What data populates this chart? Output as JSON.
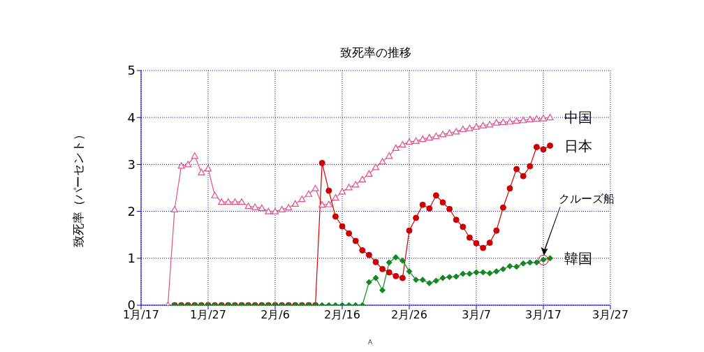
{
  "chart_data": {
    "type": "line",
    "title": "致死率の推移",
    "ylabel": "致死率（パーセント）",
    "x": [
      "--01-21",
      "--01-22",
      "--01-23",
      "--01-24",
      "--01-25",
      "--01-26",
      "--01-27",
      "--01-28",
      "--01-29",
      "--01-30",
      "--01-31",
      "--02-01",
      "--02-02",
      "--02-03",
      "--02-04",
      "--02-05",
      "--02-06",
      "--02-07",
      "--02-08",
      "--02-09",
      "--02-10",
      "--02-11",
      "--02-12",
      "--02-13",
      "--02-14",
      "--02-15",
      "--02-16",
      "--02-17",
      "--02-18",
      "--02-19",
      "--02-20",
      "--02-21",
      "--02-22",
      "--02-23",
      "--02-24",
      "--02-25",
      "--02-26",
      "--02-27",
      "--02-28",
      "--02-29",
      "--03-01",
      "--03-02",
      "--03-03",
      "--03-04",
      "--03-05",
      "--03-06",
      "--03-07",
      "--03-08",
      "--03-09",
      "--03-10",
      "--03-11",
      "--03-12",
      "--03-13",
      "--03-14",
      "--03-15",
      "--03-16",
      "--03-17",
      "--03-18"
    ],
    "series": [
      {
        "name": "中国",
        "color": "#e0508a",
        "marker": "triangle",
        "values": [
          0,
          2.04,
          2.97,
          3.0,
          3.18,
          2.83,
          2.91,
          2.34,
          2.2,
          2.2,
          2.2,
          2.2,
          2.11,
          2.09,
          2.07,
          2.0,
          2.0,
          2.04,
          2.08,
          2.16,
          2.26,
          2.37,
          2.49,
          2.14,
          2.15,
          2.29,
          2.42,
          2.51,
          2.57,
          2.68,
          2.8,
          2.94,
          3.06,
          3.18,
          3.35,
          3.42,
          3.48,
          3.5,
          3.54,
          3.57,
          3.6,
          3.64,
          3.67,
          3.7,
          3.75,
          3.77,
          3.8,
          3.83,
          3.85,
          3.89,
          3.9,
          3.91,
          3.93,
          3.94,
          3.96,
          3.97,
          3.98,
          4.0
        ]
      },
      {
        "name": "日本",
        "color": "#cc0000",
        "marker": "circle",
        "values": [
          null,
          0,
          0,
          0,
          0,
          0,
          0,
          0,
          0,
          0,
          0,
          0,
          0,
          0,
          0,
          0,
          0,
          0,
          0,
          0,
          0,
          0,
          0,
          3.03,
          2.44,
          1.89,
          1.68,
          1.53,
          1.37,
          1.17,
          1.07,
          0.92,
          0.77,
          0.7,
          0.62,
          0.58,
          1.59,
          1.86,
          2.14,
          2.06,
          2.34,
          2.19,
          2.05,
          1.82,
          1.67,
          1.44,
          1.32,
          1.22,
          1.33,
          1.59,
          2.08,
          2.49,
          2.9,
          2.75,
          2.96,
          3.37,
          3.32,
          3.4
        ]
      },
      {
        "name": "韓国",
        "color": "#108a20",
        "marker": "diamond",
        "values": [
          null,
          0,
          0,
          0,
          0,
          0,
          0,
          0,
          0,
          0,
          0,
          0,
          0,
          0,
          0,
          0,
          0,
          0,
          0,
          0,
          0,
          0,
          0,
          0,
          0,
          0,
          0,
          0,
          0,
          0,
          0.49,
          0.58,
          0.32,
          0.91,
          1.02,
          0.95,
          0.72,
          0.54,
          0.54,
          0.47,
          0.52,
          0.58,
          0.6,
          0.61,
          0.67,
          0.67,
          0.7,
          0.7,
          0.68,
          0.72,
          0.77,
          0.83,
          0.82,
          0.89,
          0.91,
          0.91,
          0.97,
          1.0
        ]
      }
    ],
    "xlim": [
      "--01-17",
      "--03-27"
    ],
    "xticks": [
      {
        "value": "--01-17",
        "label": "1月/17"
      },
      {
        "value": "--01-27",
        "label": "1月/27"
      },
      {
        "value": "--02-06",
        "label": "2月/6"
      },
      {
        "value": "--02-16",
        "label": "2月/16"
      },
      {
        "value": "--02-26",
        "label": "2月/26"
      },
      {
        "value": "--03-07",
        "label": "3月/7"
      },
      {
        "value": "--03-17",
        "label": "3月/17"
      },
      {
        "value": "--03-27",
        "label": "3月/27"
      }
    ],
    "ylim": [
      0,
      5
    ],
    "yticks": [
      0,
      1,
      2,
      3,
      4,
      5
    ],
    "grid": true,
    "line_style": "solid",
    "annotations": [
      "クルーズ船",
      "A"
    ]
  }
}
